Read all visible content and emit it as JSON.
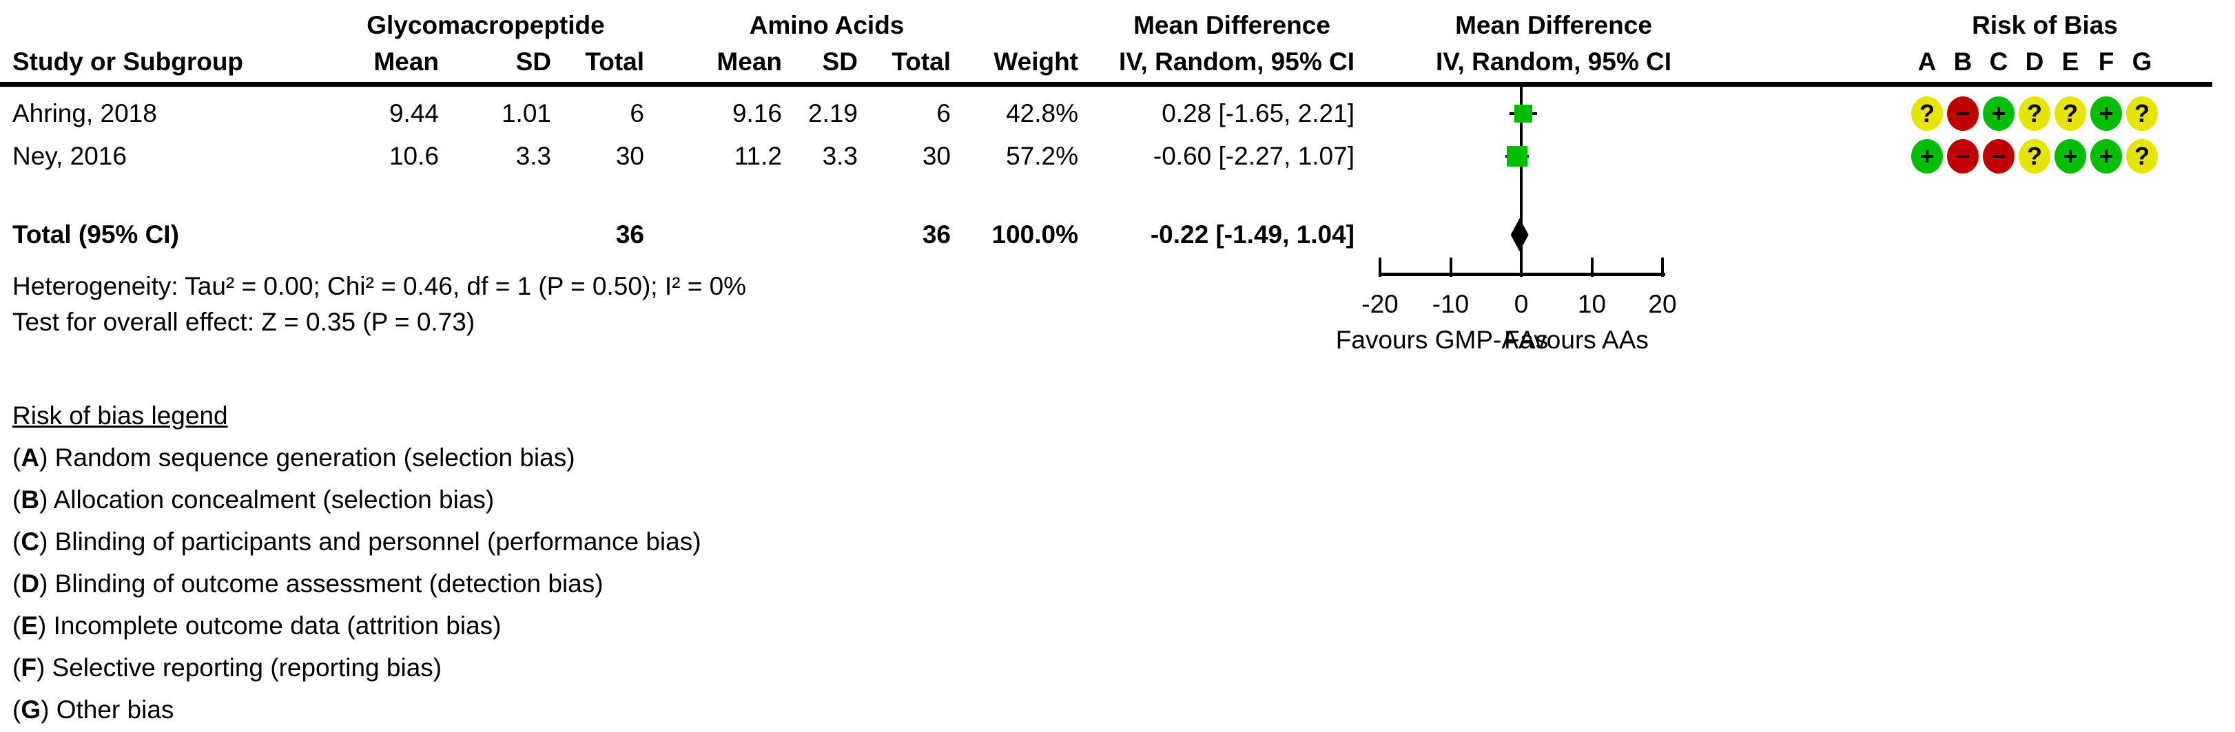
{
  "table": {
    "col1_header": "Study or Subgroup",
    "group1": {
      "label": "Glycomacropeptide",
      "mean": "Mean",
      "sd": "SD",
      "total": "Total"
    },
    "group2": {
      "label": "Amino Acids",
      "mean": "Mean",
      "sd": "SD",
      "total": "Total"
    },
    "weight_header": "Weight",
    "md_text_header": {
      "line1": "Mean Difference",
      "line2": "IV, Random, 95% CI"
    },
    "md_plot_header": {
      "line1": "Mean Difference",
      "line2": "IV, Random, 95% CI"
    },
    "rob_header": {
      "title": "Risk of Bias",
      "letters": [
        "A",
        "B",
        "C",
        "D",
        "E",
        "F",
        "G"
      ]
    }
  },
  "studies": [
    {
      "name": "Ahring, 2018",
      "g1_mean": "9.44",
      "g1_sd": "1.01",
      "g1_total": "6",
      "g2_mean": "9.16",
      "g2_sd": "2.19",
      "g2_total": "6",
      "weight": "42.8%",
      "ci_text": "0.28 [-1.65, 2.21]",
      "md": 0.28,
      "ci_low": -1.65,
      "ci_high": 2.21,
      "weight_pct": 42.8,
      "rob": [
        "unclear",
        "high",
        "low",
        "unclear",
        "unclear",
        "low",
        "unclear"
      ]
    },
    {
      "name": "Ney, 2016",
      "g1_mean": "10.6",
      "g1_sd": "3.3",
      "g1_total": "30",
      "g2_mean": "11.2",
      "g2_sd": "3.3",
      "g2_total": "30",
      "weight": "57.2%",
      "ci_text": "-0.60 [-2.27, 1.07]",
      "md": -0.6,
      "ci_low": -2.27,
      "ci_high": 1.07,
      "weight_pct": 57.2,
      "rob": [
        "low",
        "high",
        "high",
        "unclear",
        "low",
        "low",
        "unclear"
      ]
    }
  ],
  "total": {
    "label": "Total (95% CI)",
    "g1_total": "36",
    "g2_total": "36",
    "weight": "100.0%",
    "ci_text": "-0.22 [-1.49, 1.04]",
    "md": -0.22,
    "ci_low": -1.49,
    "ci_high": 1.04
  },
  "stats": {
    "heterogeneity": "Heterogeneity: Tau² = 0.00; Chi² = 0.46, df = 1 (P = 0.50); I² = 0%",
    "overall_effect": "Test for overall effect: Z = 0.35 (P = 0.73)"
  },
  "axis": {
    "min": -20,
    "max": 20,
    "ticks": [
      -20,
      -10,
      0,
      10,
      20
    ],
    "tick_labels": [
      "-20",
      "-10",
      "0",
      "10",
      "20"
    ],
    "favours_left": "Favours GMP-AAs",
    "favours_right": "Favours AAs"
  },
  "legend": {
    "title": "Risk of bias legend",
    "items": [
      {
        "letter": "A",
        "text": "Random sequence generation (selection bias)"
      },
      {
        "letter": "B",
        "text": "Allocation concealment (selection bias)"
      },
      {
        "letter": "C",
        "text": "Blinding of participants and personnel (performance bias)"
      },
      {
        "letter": "D",
        "text": "Blinding of outcome assessment (detection bias)"
      },
      {
        "letter": "E",
        "text": "Incomplete outcome data (attrition bias)"
      },
      {
        "letter": "F",
        "text": "Selective reporting (reporting bias)"
      },
      {
        "letter": "G",
        "text": "Other bias"
      }
    ]
  },
  "rob_symbols": {
    "low": "+",
    "high": "−",
    "unclear": "?"
  },
  "colors": {
    "low": "#00bf00",
    "high": "#c00000",
    "unclear": "#e5e500",
    "marker": "#00bf00",
    "text": "#000000"
  },
  "chart_data": {
    "type": "forest",
    "effect_measure": "Mean Difference IV, Random, 95% CI",
    "group_left": "Glycomacropeptide",
    "group_right": "Amino Acids",
    "studies": [
      {
        "name": "Ahring, 2018",
        "md": 0.28,
        "ci": [
          -1.65,
          2.21
        ],
        "weight_pct": 42.8,
        "left": {
          "mean": 9.44,
          "sd": 1.01,
          "n": 6
        },
        "right": {
          "mean": 9.16,
          "sd": 2.19,
          "n": 6
        }
      },
      {
        "name": "Ney, 2016",
        "md": -0.6,
        "ci": [
          -2.27,
          1.07
        ],
        "weight_pct": 57.2,
        "left": {
          "mean": 10.6,
          "sd": 3.3,
          "n": 30
        },
        "right": {
          "mean": 11.2,
          "sd": 3.3,
          "n": 30
        }
      }
    ],
    "pooled": {
      "label": "Total (95% CI)",
      "md": -0.22,
      "ci": [
        -1.49,
        1.04
      ],
      "n_left": 36,
      "n_right": 36,
      "weight_pct": 100.0
    },
    "heterogeneity": {
      "tau2": 0.0,
      "chi2": 0.46,
      "df": 1,
      "p": 0.5,
      "i2_pct": 0
    },
    "overall_effect": {
      "z": 0.35,
      "p": 0.73
    },
    "xlim": [
      -20,
      20
    ],
    "ticks": [
      -20,
      -10,
      0,
      10,
      20
    ],
    "xlabel_left": "Favours GMP-AAs",
    "xlabel_right": "Favours AAs"
  }
}
